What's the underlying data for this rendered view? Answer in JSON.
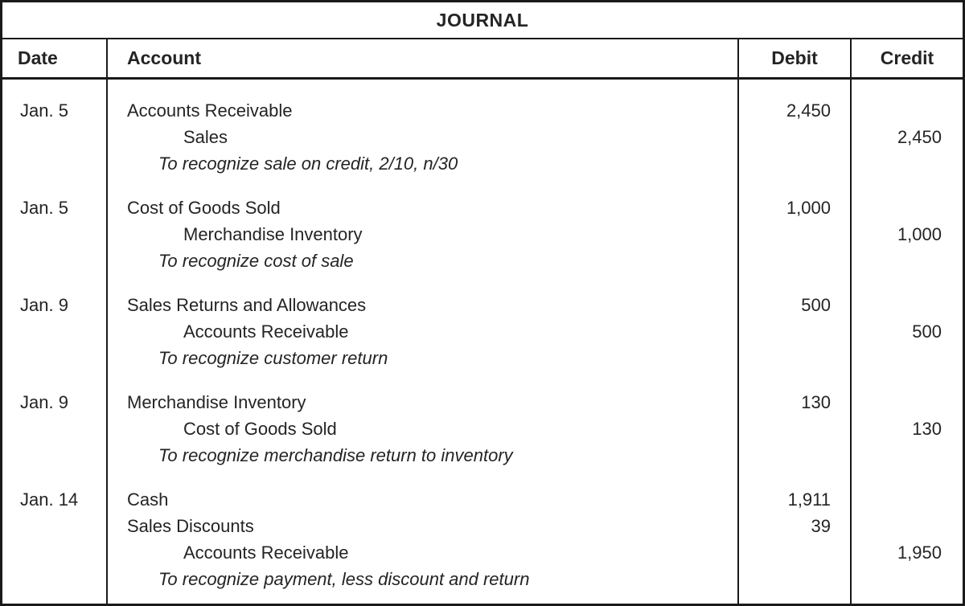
{
  "title": "JOURNAL",
  "columns": {
    "date": "Date",
    "account": "Account",
    "debit": "Debit",
    "credit": "Credit"
  },
  "entries": [
    {
      "date": "Jan. 5",
      "lines": [
        {
          "account": "Accounts Receivable",
          "debit": "2,450"
        },
        {
          "account": "Sales",
          "credit": "2,450"
        },
        {
          "account": "To recognize sale on credit, 2/10, n/30"
        }
      ]
    },
    {
      "date": "Jan. 5",
      "lines": [
        {
          "account": "Cost of Goods Sold",
          "debit": "1,000"
        },
        {
          "account": "Merchandise Inventory",
          "credit": "1,000"
        },
        {
          "account": "To recognize cost of sale"
        }
      ]
    },
    {
      "date": "Jan. 9",
      "lines": [
        {
          "account": "Sales Returns and Allowances",
          "debit": "500"
        },
        {
          "account": "Accounts Receivable",
          "credit": "500"
        },
        {
          "account": "To recognize customer return"
        }
      ]
    },
    {
      "date": "Jan. 9",
      "lines": [
        {
          "account": "Merchandise Inventory",
          "debit": "130"
        },
        {
          "account": "Cost of Goods Sold",
          "credit": "130"
        },
        {
          "account": "To recognize merchandise return to inventory"
        }
      ]
    },
    {
      "date": "Jan. 14",
      "lines": [
        {
          "account": "Cash",
          "debit": "1,911"
        },
        {
          "account": "Sales Discounts",
          "debit": "39"
        },
        {
          "account": "Accounts Receivable",
          "credit": "1,950"
        },
        {
          "account": "To recognize payment, less discount and return"
        }
      ]
    }
  ],
  "colors": {
    "border": "#1a1a1a",
    "text": "#242424",
    "background": "#ffffff"
  }
}
